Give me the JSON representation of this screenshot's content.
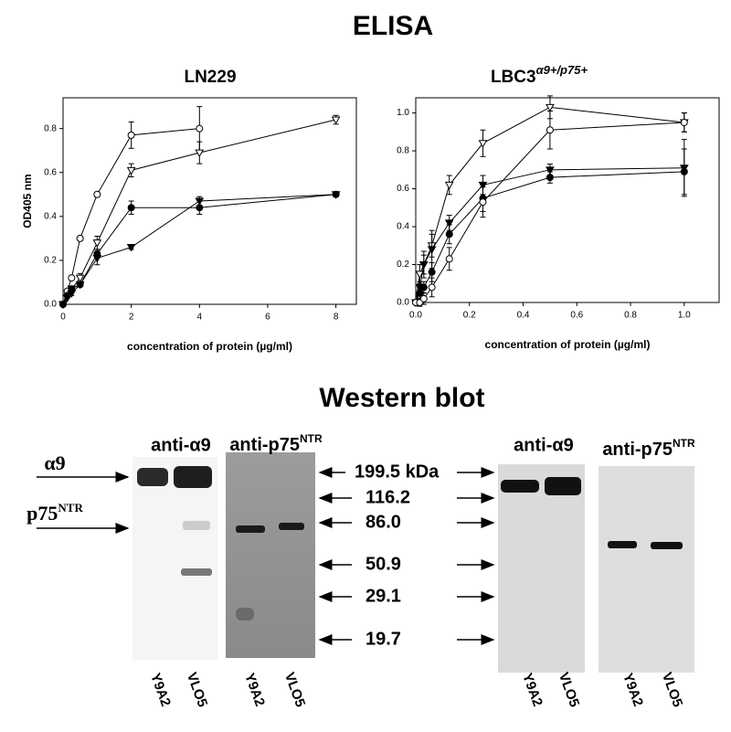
{
  "title": "ELISA",
  "chart_data": [
    {
      "type": "line",
      "title": "LN229",
      "xlabel": "concentration of protein (µg/ml)",
      "ylabel": "OD405 nm",
      "x": [
        0,
        0.125,
        0.25,
        0.5,
        1,
        2,
        4,
        8
      ],
      "xlim": [
        0,
        8.6
      ],
      "xticks": [
        0,
        2,
        4,
        6,
        8
      ],
      "ylim": [
        0,
        0.94
      ],
      "yticks": [
        {
          "value": 0,
          "label": "0.0"
        },
        0.2,
        0.4,
        0.6,
        0.8
      ],
      "series": [
        {
          "color": "#000000",
          "marker": "circle-open",
          "values": [
            0,
            0.06,
            0.12,
            0.3,
            0.5,
            0.77,
            0.8,
            null
          ],
          "errors": [
            0,
            0,
            0.01,
            0.01,
            0.01,
            0.06,
            0.1,
            null
          ]
        },
        {
          "color": "#000000",
          "marker": "triangle-open",
          "values": [
            0,
            0.03,
            0.07,
            0.12,
            0.28,
            0.61,
            0.69,
            0.84
          ],
          "errors": [
            0,
            0,
            0.01,
            0.02,
            0.03,
            0.03,
            0.05,
            0.02
          ]
        },
        {
          "color": "#000000",
          "marker": "triangle-filled",
          "values": [
            0,
            0.03,
            0.05,
            0.09,
            0.21,
            0.26,
            0.47,
            0.5
          ],
          "errors": [
            0,
            0,
            0.01,
            0.01,
            0.03,
            0.01,
            0.02,
            0.01
          ]
        },
        {
          "color": "#000000",
          "marker": "circle-filled",
          "values": [
            0,
            0.04,
            0.07,
            0.09,
            0.23,
            0.44,
            0.44,
            0.5
          ],
          "errors": [
            0,
            0,
            0.01,
            0.01,
            0.02,
            0.03,
            0.03,
            0.01
          ]
        }
      ]
    },
    {
      "type": "line",
      "title": "LBC3",
      "title_superscript": "α9+/p75+",
      "xlabel": "concentration of protein (µg/ml)",
      "x": [
        0,
        0.015,
        0.03,
        0.06,
        0.125,
        0.25,
        0.5,
        1
      ],
      "xlim": [
        0,
        1.13
      ],
      "xticks": [
        {
          "value": 0,
          "label": "0.0"
        },
        0.2,
        0.4,
        0.6,
        0.8,
        {
          "value": 1,
          "label": "1.0"
        }
      ],
      "ylim": [
        0,
        1.08
      ],
      "yticks": [
        {
          "value": 0,
          "label": "0.0"
        },
        0.2,
        0.4,
        0.6,
        0.8,
        {
          "value": 1,
          "label": "1.0"
        }
      ],
      "series": [
        {
          "color": "#000000",
          "marker": "triangle-open",
          "values": [
            0,
            0.15,
            0.2,
            0.3,
            0.62,
            0.84,
            1.03,
            0.95
          ],
          "errors": [
            0,
            0.05,
            0.07,
            0.06,
            0.05,
            0.07,
            0.06,
            0.05
          ]
        },
        {
          "color": "#000000",
          "marker": "triangle-filled",
          "values": [
            0,
            0.08,
            0.2,
            0.28,
            0.42,
            0.62,
            0.7,
            0.71
          ],
          "errors": [
            0,
            0.03,
            0.05,
            0.1,
            0.04,
            0.05,
            0.03,
            0.15
          ]
        },
        {
          "color": "#000000",
          "marker": "circle-filled",
          "values": [
            0,
            0.05,
            0.08,
            0.16,
            0.36,
            0.55,
            0.66,
            0.69
          ],
          "errors": [
            0,
            0.03,
            0.03,
            0.05,
            0.05,
            0.07,
            0.03,
            0.12
          ]
        },
        {
          "color": "#000000",
          "marker": "circle-open",
          "values": [
            0,
            0,
            0.02,
            0.08,
            0.23,
            0.53,
            0.91,
            0.95
          ],
          "errors": [
            0,
            0.02,
            0.03,
            0.05,
            0.06,
            0.08,
            0.1,
            0.05
          ]
        }
      ]
    }
  ],
  "western_blot": {
    "title": "Western blot",
    "side_labels": [
      {
        "text": "α9"
      },
      {
        "text": "p75",
        "superscript": "NTR"
      }
    ],
    "markers": [
      "199.5 kDa",
      "116.2",
      "86.0",
      "50.9",
      "29.1",
      "19.7"
    ],
    "panels": [
      {
        "antibody": "anti-α9",
        "lanes": [
          "Y9A2",
          "VLO5"
        ]
      },
      {
        "antibody": "anti-p75",
        "superscript": "NTR",
        "lanes": [
          "Y9A2",
          "VLO5"
        ]
      },
      {
        "antibody": "anti-α9",
        "lanes": [
          "Y9A2",
          "VLO5"
        ]
      },
      {
        "antibody": "anti-p75",
        "superscript": "NTR",
        "lanes": [
          "Y9A2",
          "VLO5"
        ]
      }
    ]
  }
}
